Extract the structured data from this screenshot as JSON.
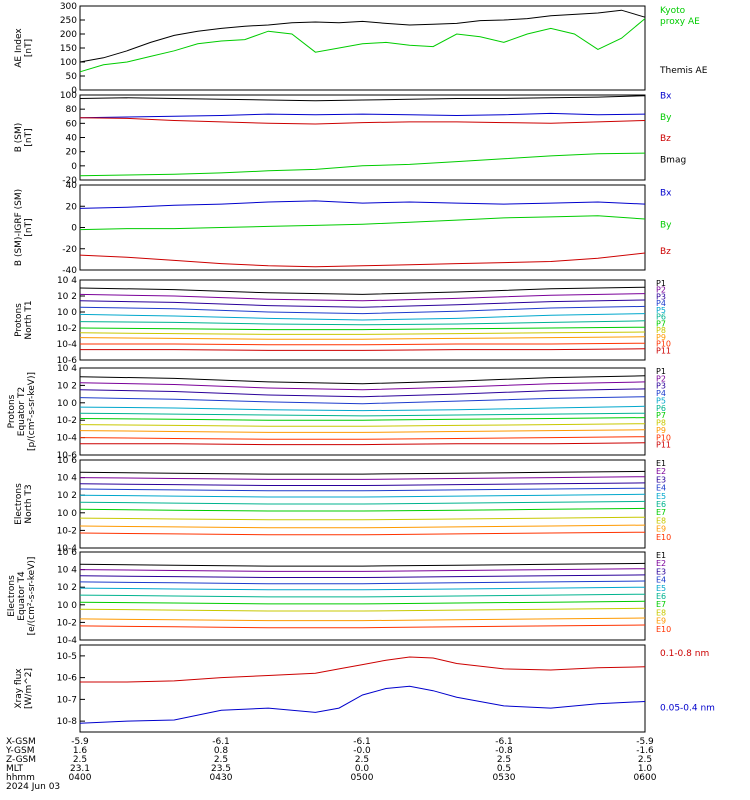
{
  "colors": {
    "black": "#000000",
    "green": "#00cc00",
    "red": "#cc0000",
    "blue": "#0000cc",
    "ch": [
      "#000000",
      "#7a0099",
      "#2a0099",
      "#1d3ccc",
      "#00a7cc",
      "#00b38f",
      "#00cc00",
      "#c8c800",
      "#ff9900",
      "#ff3300",
      "#cc0000"
    ]
  },
  "footer": {
    "labels": [
      "X-GSM",
      "Y-GSM",
      "Z-GSM",
      "MLT",
      "hhmm"
    ],
    "date": "2024 Jun 03",
    "columns": [
      {
        "values": [
          "-5.9",
          "1.6",
          "2.5",
          "23.1",
          "0400"
        ]
      },
      {
        "values": [
          "-6.1",
          "0.8",
          "2.5",
          "23.5",
          "0430"
        ]
      },
      {
        "values": [
          "-6.1",
          "-0.0",
          "2.5",
          "0.0",
          "0500"
        ]
      },
      {
        "values": [
          "-6.1",
          "-0.8",
          "2.5",
          "0.5",
          "0530"
        ]
      },
      {
        "values": [
          "-5.9",
          "-1.6",
          "2.5",
          "1.0",
          "0600"
        ]
      }
    ]
  },
  "chart_data": [
    {
      "type": "line",
      "ylabel": [
        "AE Index",
        "[nT]"
      ],
      "ylim": [
        0,
        300
      ],
      "yticks": [
        {
          "v": 0,
          "t": "0"
        },
        {
          "v": 50,
          "t": "50"
        },
        {
          "v": 100,
          "t": "100"
        },
        {
          "v": 150,
          "t": "150"
        },
        {
          "v": 200,
          "t": "200"
        },
        {
          "v": 250,
          "t": "250"
        },
        {
          "v": 300,
          "t": "300"
        }
      ],
      "x": [
        0,
        5,
        10,
        15,
        20,
        25,
        30,
        35,
        40,
        45,
        50,
        55,
        60,
        65,
        70,
        75,
        80,
        85,
        90,
        95,
        100,
        105,
        110,
        115,
        120
      ],
      "series": [
        {
          "name": "Kyoto proxy AE",
          "name_lines": [
            "Kyoto",
            "proxy AE"
          ],
          "color": "#00cc00",
          "legend_y": 275,
          "values": [
            65,
            90,
            100,
            120,
            140,
            165,
            175,
            180,
            210,
            200,
            135,
            150,
            165,
            170,
            160,
            155,
            200,
            190,
            170,
            200,
            220,
            200,
            145,
            185,
            255
          ]
        },
        {
          "name": "Themis AE",
          "name_lines": [
            "Themis AE"
          ],
          "color": "#000000",
          "legend_y": 60,
          "values": [
            100,
            115,
            140,
            170,
            195,
            210,
            220,
            228,
            232,
            240,
            243,
            240,
            245,
            238,
            232,
            235,
            238,
            248,
            250,
            255,
            265,
            270,
            275,
            285,
            260
          ]
        }
      ]
    },
    {
      "type": "line",
      "ylabel": [
        "B (SM)",
        "[nT]"
      ],
      "ylim": [
        -20,
        100
      ],
      "yticks": [
        {
          "v": -20,
          "t": "-20"
        },
        {
          "v": 0,
          "t": "0"
        },
        {
          "v": 20,
          "t": "20"
        },
        {
          "v": 40,
          "t": "40"
        },
        {
          "v": 60,
          "t": "60"
        },
        {
          "v": 80,
          "t": "80"
        },
        {
          "v": 100,
          "t": "100"
        }
      ],
      "x": [
        0,
        10,
        20,
        30,
        40,
        50,
        60,
        70,
        80,
        90,
        100,
        110,
        120
      ],
      "series": [
        {
          "name": "Bx",
          "name_lines": [
            "Bx"
          ],
          "color": "#0000cc",
          "legend_y": 95,
          "values": [
            68,
            69,
            70,
            71,
            73,
            72,
            73,
            72,
            71,
            72,
            74,
            72,
            73
          ]
        },
        {
          "name": "By",
          "name_lines": [
            "By"
          ],
          "color": "#00cc00",
          "legend_y": 65,
          "values": [
            -14,
            -13,
            -12,
            -10,
            -7,
            -5,
            0,
            2,
            6,
            10,
            14,
            17,
            18
          ]
        },
        {
          "name": "Bz",
          "name_lines": [
            "Bz"
          ],
          "color": "#cc0000",
          "legend_y": 35,
          "values": [
            68,
            67,
            64,
            62,
            60,
            59,
            61,
            62,
            62,
            61,
            60,
            62,
            64
          ]
        },
        {
          "name": "Bmag",
          "name_lines": [
            "Bmag"
          ],
          "color": "#000000",
          "legend_y": 5,
          "values": [
            95,
            96,
            95,
            94,
            93,
            92,
            93,
            94,
            95,
            95,
            96,
            97,
            99
          ]
        }
      ]
    },
    {
      "type": "line",
      "ylabel": [
        "B (SM)-IGRF (SM)",
        "[nT]"
      ],
      "ylim": [
        -40,
        40
      ],
      "yticks": [
        {
          "v": -40,
          "t": "-40"
        },
        {
          "v": -20,
          "t": "-20"
        },
        {
          "v": 0,
          "t": "0"
        },
        {
          "v": 20,
          "t": "20"
        },
        {
          "v": 40,
          "t": "40"
        }
      ],
      "x": [
        0,
        10,
        20,
        30,
        40,
        50,
        60,
        70,
        80,
        90,
        100,
        110,
        120
      ],
      "series": [
        {
          "name": "Bx",
          "name_lines": [
            "Bx"
          ],
          "color": "#0000cc",
          "legend_y": 30,
          "values": [
            18,
            19,
            21,
            22,
            24,
            25,
            23,
            24,
            23,
            22,
            23,
            24,
            22
          ]
        },
        {
          "name": "By",
          "name_lines": [
            "By"
          ],
          "color": "#00cc00",
          "legend_y": 0,
          "values": [
            -2,
            -1,
            -1,
            0,
            1,
            2,
            3,
            5,
            7,
            9,
            10,
            11,
            8
          ]
        },
        {
          "name": "Bz",
          "name_lines": [
            "Bz"
          ],
          "color": "#cc0000",
          "legend_y": -25,
          "values": [
            -26,
            -28,
            -31,
            -34,
            -36,
            -37,
            -36,
            -35,
            -34,
            -33,
            -32,
            -29,
            -24
          ]
        }
      ]
    },
    {
      "type": "line",
      "log": true,
      "ylabel": [
        "Protons",
        "North T1"
      ],
      "ylim": [
        -6,
        4
      ],
      "yticks": [
        {
          "v": -6,
          "t": "10-6"
        },
        {
          "v": -4,
          "t": "10-4"
        },
        {
          "v": -2,
          "t": "10-2"
        },
        {
          "v": 0,
          "t": "10 0"
        },
        {
          "v": 2,
          "t": "10 2"
        },
        {
          "v": 4,
          "t": "10 4"
        }
      ],
      "channels": [
        "P1",
        "P2",
        "P3",
        "P4",
        "P5",
        "P6",
        "P7",
        "P8",
        "P9",
        "P10",
        "P11"
      ],
      "x": [
        0,
        20,
        40,
        60,
        80,
        100,
        120
      ],
      "log_values": [
        [
          3.0,
          2.8,
          2.4,
          2.2,
          2.5,
          2.9,
          3.1
        ],
        [
          2.2,
          2.0,
          1.6,
          1.4,
          1.7,
          2.1,
          2.3
        ],
        [
          1.4,
          1.2,
          0.8,
          0.6,
          0.9,
          1.3,
          1.5
        ],
        [
          0.6,
          0.4,
          0.0,
          -0.2,
          0.1,
          0.5,
          0.7
        ],
        [
          -0.3,
          -0.5,
          -0.8,
          -1.0,
          -0.8,
          -0.4,
          -0.2
        ],
        [
          -1.2,
          -1.3,
          -1.5,
          -1.6,
          -1.5,
          -1.3,
          -1.1
        ],
        [
          -2.0,
          -2.1,
          -2.2,
          -2.2,
          -2.1,
          -2.0,
          -1.9
        ],
        [
          -2.6,
          -2.7,
          -2.8,
          -2.8,
          -2.7,
          -2.6,
          -2.5
        ],
        [
          -3.2,
          -3.3,
          -3.4,
          -3.4,
          -3.3,
          -3.2,
          -3.1
        ],
        [
          -4.0,
          -4.0,
          -4.1,
          -4.1,
          -4.0,
          -4.0,
          -3.9
        ],
        [
          -4.7,
          -4.7,
          -4.8,
          -4.8,
          -4.7,
          -4.7,
          -4.6
        ]
      ]
    },
    {
      "type": "line",
      "log": true,
      "ylabel": [
        "Protons",
        "Equator T2",
        "[p/(cm²-s-sr-keV)]"
      ],
      "ylim": [
        -6,
        4
      ],
      "yticks": [
        {
          "v": -6,
          "t": "10-6"
        },
        {
          "v": -4,
          "t": "10-4"
        },
        {
          "v": -2,
          "t": "10-2"
        },
        {
          "v": 0,
          "t": "10 0"
        },
        {
          "v": 2,
          "t": "10 2"
        },
        {
          "v": 4,
          "t": "10 4"
        }
      ],
      "channels": [
        "P1",
        "P2",
        "P3",
        "P4",
        "P5",
        "P6",
        "P7",
        "P8",
        "P9",
        "P10",
        "P11"
      ],
      "x": [
        0,
        20,
        40,
        60,
        80,
        100,
        120
      ],
      "log_values": [
        [
          3.0,
          2.8,
          2.4,
          2.2,
          2.5,
          2.9,
          3.1
        ],
        [
          2.3,
          2.1,
          1.7,
          1.5,
          1.8,
          2.2,
          2.4
        ],
        [
          1.5,
          1.3,
          0.9,
          0.7,
          1.0,
          1.4,
          1.6
        ],
        [
          0.6,
          0.4,
          0.1,
          -0.1,
          0.2,
          0.5,
          0.7
        ],
        [
          -0.5,
          -0.6,
          -0.8,
          -0.9,
          -0.8,
          -0.6,
          -0.4
        ],
        [
          -1.2,
          -1.3,
          -1.4,
          -1.5,
          -1.4,
          -1.3,
          -1.2
        ],
        [
          -1.8,
          -1.9,
          -2.0,
          -2.0,
          -1.9,
          -1.8,
          -1.7
        ],
        [
          -2.5,
          -2.6,
          -2.7,
          -2.7,
          -2.6,
          -2.5,
          -2.4
        ],
        [
          -3.2,
          -3.3,
          -3.4,
          -3.4,
          -3.3,
          -3.2,
          -3.1
        ],
        [
          -4.0,
          -4.1,
          -4.2,
          -4.2,
          -4.1,
          -4.0,
          -3.9
        ],
        [
          -4.7,
          -4.7,
          -4.8,
          -4.8,
          -4.7,
          -4.7,
          -4.6
        ]
      ]
    },
    {
      "type": "line",
      "log": true,
      "ylabel": [
        "Electrons",
        "North T3"
      ],
      "ylim": [
        -4,
        6
      ],
      "yticks": [
        {
          "v": -4,
          "t": "10-4"
        },
        {
          "v": -2,
          "t": "10-2"
        },
        {
          "v": 0,
          "t": "10 0"
        },
        {
          "v": 2,
          "t": "10 2"
        },
        {
          "v": 4,
          "t": "10 4"
        },
        {
          "v": 6,
          "t": "10 6"
        }
      ],
      "channels": [
        "E1",
        "E2",
        "E3",
        "E4",
        "E5",
        "E6",
        "E7",
        "E8",
        "E9",
        "E10"
      ],
      "x": [
        0,
        20,
        40,
        60,
        80,
        100,
        120
      ],
      "log_values": [
        [
          4.6,
          4.5,
          4.4,
          4.4,
          4.5,
          4.6,
          4.7
        ],
        [
          4.0,
          3.9,
          3.8,
          3.8,
          3.9,
          4.0,
          4.1
        ],
        [
          3.3,
          3.2,
          3.1,
          3.1,
          3.2,
          3.3,
          3.4
        ],
        [
          2.7,
          2.6,
          2.5,
          2.5,
          2.6,
          2.7,
          2.8
        ],
        [
          2.0,
          1.9,
          1.8,
          1.8,
          1.9,
          2.0,
          2.1
        ],
        [
          1.2,
          1.1,
          1.0,
          1.0,
          1.1,
          1.2,
          1.3
        ],
        [
          0.4,
          0.3,
          0.2,
          0.2,
          0.3,
          0.4,
          0.5
        ],
        [
          -0.6,
          -0.7,
          -0.8,
          -0.8,
          -0.7,
          -0.6,
          -0.5
        ],
        [
          -1.5,
          -1.6,
          -1.7,
          -1.7,
          -1.6,
          -1.5,
          -1.4
        ],
        [
          -2.3,
          -2.4,
          -2.5,
          -2.5,
          -2.4,
          -2.3,
          -2.2
        ]
      ]
    },
    {
      "type": "line",
      "log": true,
      "ylabel": [
        "Electrons",
        "Equator T4",
        "[e/(cm²-s-sr-keV)]"
      ],
      "ylim": [
        -4,
        6
      ],
      "yticks": [
        {
          "v": -4,
          "t": "10-4"
        },
        {
          "v": -2,
          "t": "10-2"
        },
        {
          "v": 0,
          "t": "10 0"
        },
        {
          "v": 2,
          "t": "10 2"
        },
        {
          "v": 4,
          "t": "10 4"
        },
        {
          "v": 6,
          "t": "10 6"
        }
      ],
      "channels": [
        "E1",
        "E2",
        "E3",
        "E4",
        "E5",
        "E6",
        "E7",
        "E8",
        "E9",
        "E10"
      ],
      "x": [
        0,
        20,
        40,
        60,
        80,
        100,
        120
      ],
      "log_values": [
        [
          4.6,
          4.5,
          4.4,
          4.4,
          4.5,
          4.6,
          4.7
        ],
        [
          4.0,
          3.9,
          3.8,
          3.8,
          3.9,
          4.0,
          4.1
        ],
        [
          3.3,
          3.2,
          3.1,
          3.1,
          3.2,
          3.3,
          3.4
        ],
        [
          2.6,
          2.5,
          2.4,
          2.4,
          2.5,
          2.6,
          2.7
        ],
        [
          1.9,
          1.8,
          1.7,
          1.7,
          1.8,
          1.9,
          2.0
        ],
        [
          1.1,
          1.0,
          0.9,
          0.9,
          1.0,
          1.1,
          1.2
        ],
        [
          0.3,
          0.2,
          0.1,
          0.1,
          0.2,
          0.3,
          0.4
        ],
        [
          -0.5,
          -0.6,
          -0.7,
          -0.7,
          -0.6,
          -0.5,
          -0.4
        ],
        [
          -1.6,
          -1.7,
          -1.8,
          -1.8,
          -1.7,
          -1.6,
          -1.5
        ],
        [
          -2.4,
          -2.5,
          -2.6,
          -2.6,
          -2.5,
          -2.4,
          -2.3
        ]
      ]
    },
    {
      "type": "line",
      "log": true,
      "ylabel": [
        "Xray flux",
        "[W/m^2]"
      ],
      "ylim": [
        -8.5,
        -4.5
      ],
      "yticks": [
        {
          "v": -8,
          "t": "10-8"
        },
        {
          "v": -7,
          "t": "10-7"
        },
        {
          "v": -6,
          "t": "10-6"
        },
        {
          "v": -5,
          "t": "10-5"
        }
      ],
      "x": [
        0,
        10,
        20,
        30,
        40,
        50,
        55,
        60,
        65,
        70,
        75,
        80,
        90,
        100,
        110,
        120
      ],
      "series": [
        {
          "name": "0.1-0.8 nm",
          "name_lines": [
            "0.1-0.8 nm"
          ],
          "color": "#cc0000",
          "legend_y": -5.0,
          "log_values": [
            -6.2,
            -6.2,
            -6.15,
            -6.0,
            -5.9,
            -5.8,
            -5.6,
            -5.4,
            -5.2,
            -5.05,
            -5.1,
            -5.35,
            -5.6,
            -5.65,
            -5.55,
            -5.5
          ]
        },
        {
          "name": "0.05-0.4 nm",
          "name_lines": [
            "0.05-0.4 nm"
          ],
          "color": "#0000cc",
          "legend_y": -7.5,
          "log_values": [
            -8.1,
            -8.0,
            -7.95,
            -7.5,
            -7.4,
            -7.6,
            -7.4,
            -6.8,
            -6.5,
            -6.4,
            -6.6,
            -6.9,
            -7.3,
            -7.4,
            -7.2,
            -7.1
          ]
        }
      ]
    }
  ]
}
